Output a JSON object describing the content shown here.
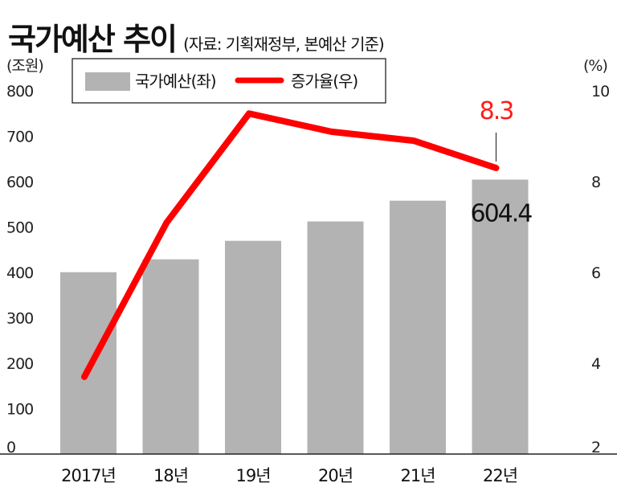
{
  "title": "국가예산 추이",
  "subtitle": "(자료: 기획재정부, 본예산 기준)",
  "colors": {
    "bar": "#b3b3b3",
    "line": "#ff0000",
    "axis": "#222222"
  },
  "chart_data": {
    "type": "bar+line",
    "categories": [
      "2017년",
      "18년",
      "19년",
      "20년",
      "21년",
      "22년"
    ],
    "series": [
      {
        "name": "국가예산(좌)",
        "type": "bar",
        "axis": "left",
        "values": [
          400.5,
          428.8,
          469.6,
          512.3,
          558.0,
          604.4
        ]
      },
      {
        "name": "증가율(우)",
        "type": "line",
        "axis": "right",
        "values": [
          3.7,
          7.1,
          9.5,
          9.1,
          8.9,
          8.3
        ]
      }
    ],
    "left_axis": {
      "unit": "(조원)",
      "ticks": [
        0,
        100,
        200,
        300,
        400,
        500,
        600,
        700,
        800
      ],
      "range": [
        0,
        800
      ]
    },
    "right_axis": {
      "unit": "(%)",
      "ticks": [
        2,
        4,
        6,
        8,
        10
      ],
      "range": [
        2,
        10
      ]
    },
    "annotations": [
      {
        "text": "604.4",
        "target": "bar",
        "index": 5
      },
      {
        "text": "8.3",
        "target": "line",
        "index": 5
      }
    ],
    "legend_position": "top",
    "grid": false
  }
}
